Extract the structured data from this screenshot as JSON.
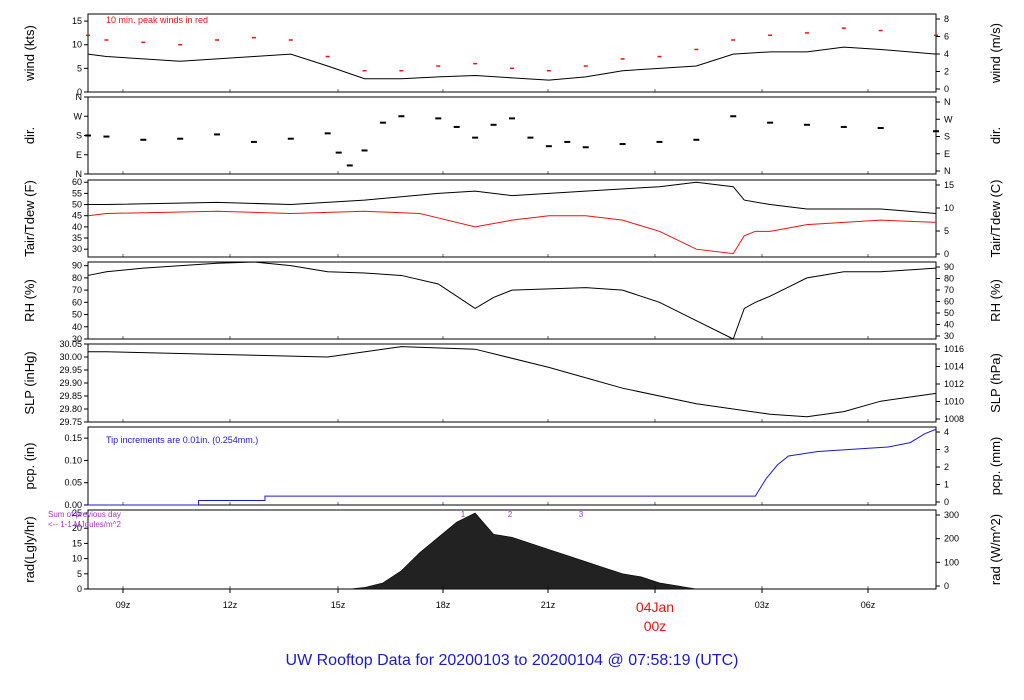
{
  "title": "UW Rooftop Data for 20200103  to  20200104 @ 07:58:19  (UTC)",
  "x_axis": {
    "ticks": [
      "09z",
      "12z",
      "15z",
      "18z",
      "21z",
      "00z",
      "03z",
      "06z"
    ],
    "day_label": "04Jan"
  },
  "colors": {
    "title": "#1a1acc",
    "red": "#ee1111",
    "blue": "#1a1acc",
    "purple": "#a030d0",
    "black": "#000000"
  },
  "chart_data": [
    {
      "type": "line",
      "id": "wind",
      "ylabel": "wind (kts)",
      "ylabel_right": "wind (m/s)",
      "ylim": [
        0,
        16.5
      ],
      "yticks": [
        "0",
        "5",
        "10",
        "15"
      ],
      "right_ticks": [
        "0",
        "2",
        "4",
        "6",
        "8"
      ],
      "annotation": "10 min. peak winds in red",
      "series": [
        {
          "name": "wind",
          "color": "#000000",
          "x": [
            8.5,
            9,
            10,
            11,
            12,
            13,
            14,
            15,
            16,
            17,
            18,
            19,
            20,
            21,
            22,
            23,
            24,
            25,
            26,
            27,
            28,
            29,
            30,
            31.5
          ],
          "values": [
            8,
            7.5,
            7,
            6.5,
            7,
            7.5,
            8,
            5.5,
            2.8,
            2.8,
            3.2,
            3.5,
            3,
            2.5,
            3.2,
            4.5,
            5,
            5.5,
            8,
            8.5,
            8.5,
            9.5,
            9,
            8
          ]
        },
        {
          "name": "peak",
          "color": "#ee1111",
          "x": [
            8.5,
            9,
            10,
            11,
            12,
            13,
            14,
            15,
            16,
            17,
            18,
            19,
            20,
            21,
            22,
            23,
            24,
            25,
            26,
            27,
            28,
            29,
            30,
            31.5
          ],
          "values": [
            12,
            11,
            10.5,
            10,
            11,
            11.5,
            11,
            7.5,
            4.5,
            4.5,
            5.5,
            6,
            5,
            4.5,
            5.5,
            7,
            7.5,
            9,
            11,
            12,
            12.5,
            13.5,
            13,
            12
          ]
        }
      ]
    },
    {
      "type": "scatter",
      "id": "dir",
      "ylabel": "dir.",
      "ylabel_right": "dir.",
      "ylim": [
        0,
        360
      ],
      "tick_values": [
        0,
        90,
        180,
        270,
        360
      ],
      "yticks": [
        "N",
        "E",
        "S",
        "W",
        "N"
      ],
      "right_ticks": [
        "N",
        "E",
        "S",
        "W",
        "N"
      ],
      "series": [
        {
          "name": "dir",
          "color": "#000000",
          "x": [
            8.5,
            9,
            10,
            11,
            12,
            13,
            14,
            15,
            15.3,
            15.6,
            16,
            16.5,
            17,
            18,
            18.5,
            19,
            19.5,
            20,
            20.5,
            21,
            21.5,
            22,
            23,
            24,
            25,
            26,
            27,
            28,
            29,
            30,
            31.5
          ],
          "values": [
            180,
            175,
            160,
            165,
            185,
            150,
            165,
            190,
            100,
            40,
            110,
            240,
            270,
            260,
            220,
            170,
            230,
            260,
            170,
            130,
            150,
            125,
            140,
            150,
            160,
            270,
            240,
            230,
            220,
            215,
            200
          ]
        }
      ]
    },
    {
      "type": "line",
      "id": "temp",
      "ylabel": "Tair/Tdew (F)",
      "ylabel_right": "Tair/Tdew (C)",
      "ylim": [
        26.5,
        61
      ],
      "yticks": [
        "30",
        "35",
        "40",
        "45",
        "50",
        "55",
        "60"
      ],
      "right_ticks": [
        "0",
        "5",
        "10",
        "15"
      ],
      "series": [
        {
          "name": "Tair",
          "color": "#000000",
          "x": [
            8.5,
            9,
            12,
            14,
            16,
            18,
            19,
            20,
            22,
            24,
            25,
            26,
            26.3,
            27,
            28,
            29,
            30,
            31.5
          ],
          "values": [
            50,
            50,
            51,
            50,
            52,
            55,
            56,
            54,
            56,
            58,
            60,
            58,
            52,
            50,
            48,
            48,
            48,
            46
          ]
        },
        {
          "name": "Tdew",
          "color": "#ee1111",
          "x": [
            8.5,
            9,
            12,
            14,
            16,
            17.5,
            18,
            19,
            20,
            21,
            22,
            23,
            24,
            25,
            26,
            26.3,
            26.6,
            27,
            28,
            29,
            30,
            31.5
          ],
          "values": [
            45,
            46,
            47,
            46,
            47,
            46,
            44,
            40,
            43,
            45,
            45,
            43,
            38,
            30,
            28,
            36,
            38,
            38,
            41,
            42,
            43,
            42
          ]
        }
      ]
    },
    {
      "type": "line",
      "id": "rh",
      "ylabel": "RH (%)",
      "ylabel_right": "RH (%)",
      "ylim": [
        30,
        93
      ],
      "yticks": [
        "30",
        "40",
        "50",
        "60",
        "70",
        "80",
        "90"
      ],
      "right_ticks": [
        "30",
        "40",
        "50",
        "60",
        "70",
        "80",
        "90"
      ],
      "series": [
        {
          "name": "RH",
          "color": "#000000",
          "x": [
            8.5,
            9,
            10,
            12,
            13,
            14,
            15,
            16,
            17,
            18,
            18.5,
            19,
            19.5,
            20,
            22,
            23,
            24,
            25,
            26,
            26.3,
            26.6,
            27,
            28,
            29,
            30,
            31.5
          ],
          "values": [
            82,
            85,
            88,
            92,
            93,
            90,
            85,
            84,
            82,
            75,
            65,
            55,
            64,
            70,
            72,
            70,
            60,
            45,
            30,
            55,
            60,
            65,
            80,
            85,
            85,
            88
          ]
        }
      ]
    },
    {
      "type": "line",
      "id": "slp",
      "ylabel": "SLP (inHg)",
      "ylabel_right": "SLP (hPa)",
      "ylim": [
        29.75,
        30.05
      ],
      "yticks": [
        "29.75",
        "29.80",
        "29.85",
        "29.90",
        "29.95",
        "30.00",
        "30.05"
      ],
      "right_ticks": [
        "1008",
        "1010",
        "1012",
        "1014",
        "1016"
      ],
      "series": [
        {
          "name": "SLP",
          "color": "#000000",
          "x": [
            8.5,
            9,
            12,
            15,
            17,
            19,
            21,
            23,
            25,
            27,
            28,
            29,
            30,
            31.5
          ],
          "values": [
            30.02,
            30.02,
            30.01,
            30.0,
            30.04,
            30.03,
            29.96,
            29.88,
            29.82,
            29.78,
            29.77,
            29.79,
            29.83,
            29.86
          ]
        }
      ]
    },
    {
      "type": "line",
      "id": "pcp",
      "ylabel": "pcp. (in)",
      "ylabel_right": "pcp. (mm)",
      "ylim": [
        0,
        0.175
      ],
      "yticks": [
        "0.00",
        "0.05",
        "0.10",
        "0.15"
      ],
      "right_ticks": [
        "0",
        "1",
        "2",
        "3",
        "4"
      ],
      "annotation": "Tip increments are 0.01in. (0.254mm.)",
      "series": [
        {
          "name": "pcp",
          "color": "#1a1acc",
          "x": [
            8.5,
            11.5,
            11.5,
            13.3,
            13.3,
            26.6,
            26.9,
            27.2,
            27.5,
            28.3,
            30.2,
            30.8,
            31.2,
            31.5
          ],
          "values": [
            0,
            0,
            0.01,
            0.01,
            0.02,
            0.02,
            0.06,
            0.09,
            0.11,
            0.12,
            0.13,
            0.14,
            0.16,
            0.17
          ]
        }
      ]
    },
    {
      "type": "area",
      "id": "rad",
      "ylabel": "rad(Lgly/hr)",
      "ylabel_right": "rad (W/m^2)",
      "ylim": [
        0,
        26
      ],
      "yticks": [
        "0",
        "5",
        "10",
        "15",
        "20",
        "25"
      ],
      "right_ticks": [
        "0",
        "100",
        "200",
        "300"
      ],
      "annotation_lines": [
        "Sum of previous day",
        "<-- 1-1 MJoules/m^2"
      ],
      "day_sum_labels": [
        "1",
        "2",
        "3"
      ],
      "series": [
        {
          "name": "rad",
          "color": "#222222",
          "x": [
            15.6,
            16,
            16.5,
            17,
            17.5,
            18,
            18.5,
            19,
            19.5,
            20,
            20.5,
            21,
            21.5,
            22,
            22.5,
            23,
            23.5,
            24,
            24.5,
            25
          ],
          "values": [
            0,
            0.5,
            2,
            6,
            12,
            17,
            22,
            25,
            18,
            17,
            15,
            13,
            11,
            9,
            7,
            5,
            4,
            2,
            1,
            0
          ]
        }
      ]
    }
  ]
}
